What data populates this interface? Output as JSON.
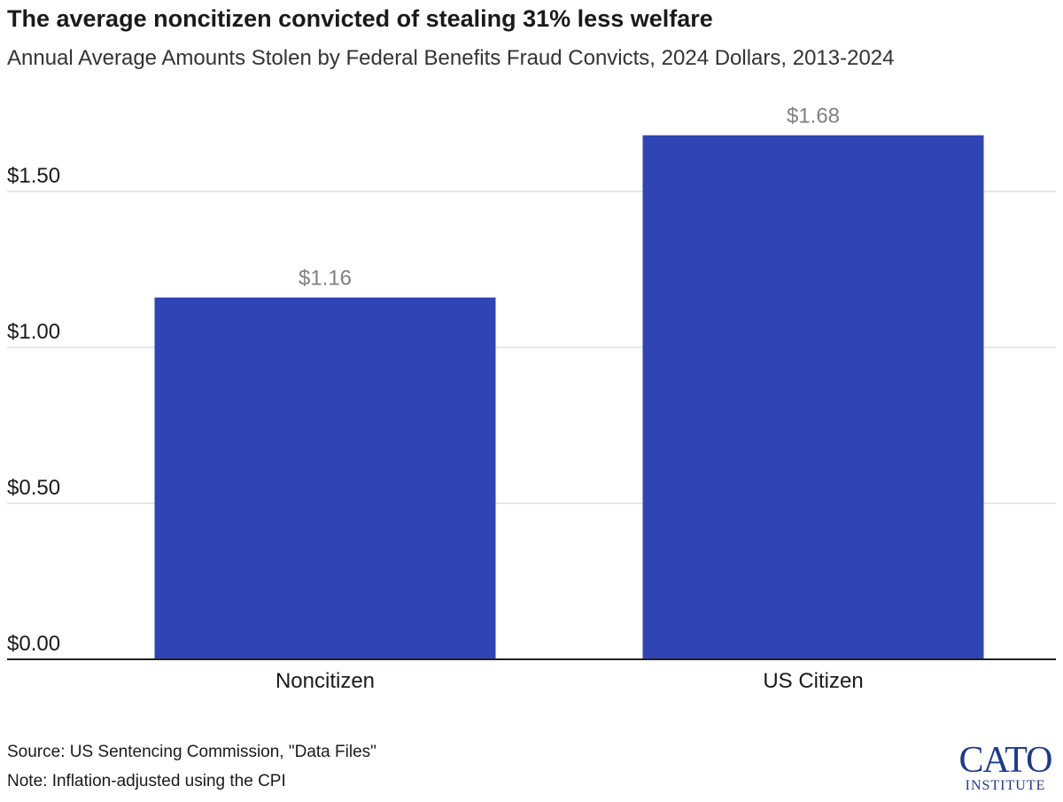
{
  "chart_data": {
    "type": "bar",
    "title": "The average noncitizen convicted of stealing 31% less welfare",
    "subtitle": "Annual Average Amounts Stolen by Federal Benefits Fraud Convicts, 2024 Dollars, 2013-2024",
    "categories": [
      "Noncitizen",
      "US Citizen"
    ],
    "values": [
      1.16,
      1.68
    ],
    "data_labels": [
      "$1.16",
      "$1.68"
    ],
    "ylim": [
      0,
      1.8
    ],
    "yticks": [
      0,
      0.5,
      1.0,
      1.5
    ],
    "ytick_labels": [
      "$0.00",
      "$0.50",
      "$1.00",
      "$1.50"
    ],
    "xlabel": "",
    "ylabel": "",
    "grid": true,
    "bar_color": "#2f45b3",
    "gridline_color": "#dddddd",
    "data_label_color": "#808080"
  },
  "footer": {
    "source": "Source: US Sentencing Commission, \"Data Files\"",
    "note": "Note: Inflation-adjusted using the CPI"
  },
  "logo": {
    "main": "CATO",
    "sub": "INSTITUTE",
    "color": "#1f3a8a"
  }
}
